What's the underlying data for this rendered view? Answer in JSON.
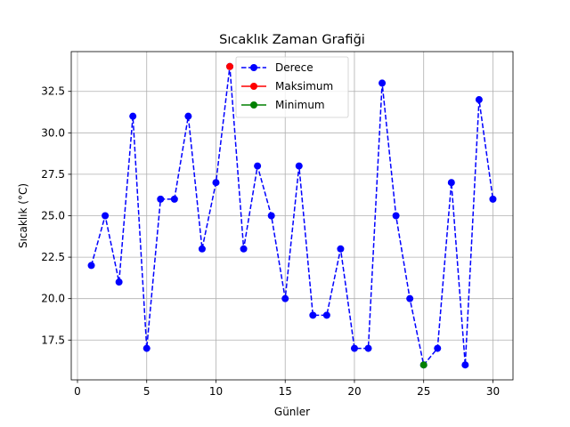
{
  "chart_data": {
    "type": "line",
    "title": "Sıcaklık Zaman Grafiği",
    "xlabel": "Günler",
    "ylabel": "Sıcaklık (°C)",
    "xlim": [
      -0.45,
      31.45
    ],
    "ylim": [
      15.1,
      34.9
    ],
    "xticks": [
      0,
      5,
      10,
      15,
      20,
      25,
      30
    ],
    "xtick_labels": [
      "0",
      "5",
      "10",
      "15",
      "20",
      "25",
      "30"
    ],
    "yticks": [
      17.5,
      20.0,
      22.5,
      25.0,
      27.5,
      30.0,
      32.5
    ],
    "ytick_labels": [
      "17.5",
      "20.0",
      "22.5",
      "25.0",
      "27.5",
      "30.0",
      "32.5"
    ],
    "grid": true,
    "legend_position": "top-center",
    "series": [
      {
        "name": "Derece",
        "style": "dashed-line-markers",
        "color": "#0000ff",
        "x": [
          1,
          2,
          3,
          4,
          5,
          6,
          7,
          8,
          9,
          10,
          11,
          12,
          13,
          14,
          15,
          16,
          17,
          18,
          19,
          20,
          21,
          22,
          23,
          24,
          25,
          26,
          27,
          28,
          29,
          30
        ],
        "values": [
          22,
          25,
          21,
          31,
          17,
          26,
          26,
          31,
          23,
          27,
          34,
          23,
          28,
          25,
          20,
          28,
          19,
          19,
          23,
          17,
          17,
          33,
          25,
          20,
          16,
          17,
          27,
          16,
          32,
          26
        ]
      },
      {
        "name": "Maksimum",
        "style": "marker",
        "color": "#ff0000",
        "x": [
          11
        ],
        "values": [
          34
        ]
      },
      {
        "name": "Minimum",
        "style": "marker",
        "color": "#008000",
        "x": [
          25
        ],
        "values": [
          16
        ]
      }
    ]
  }
}
